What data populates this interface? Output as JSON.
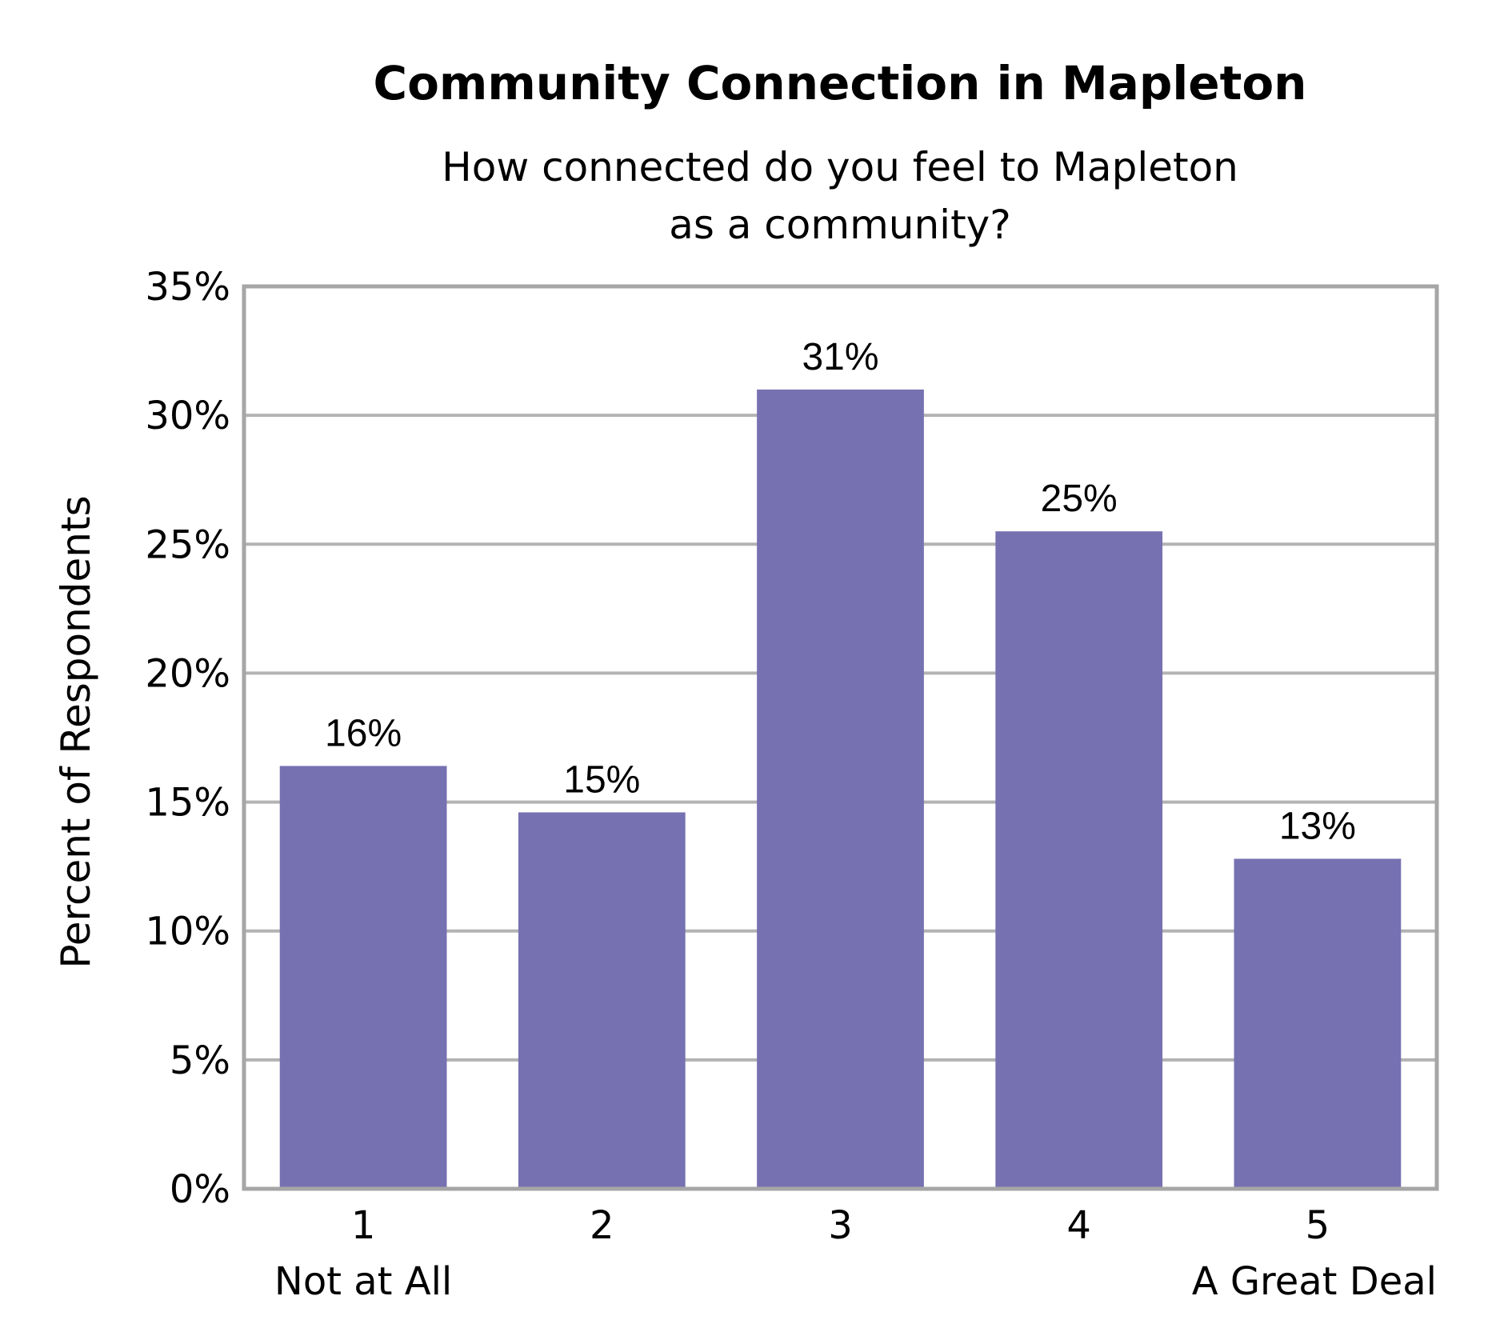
{
  "chart_data": {
    "type": "bar",
    "title": "Community Connection in Mapleton",
    "subtitle": [
      "How connected do you feel to Mapleton",
      "as a community?"
    ],
    "ylabel": "Percent of Respondents",
    "xlabel": "",
    "categories": [
      "1",
      "2",
      "3",
      "4",
      "5"
    ],
    "category_sublabels": [
      "Not at All",
      "",
      "",
      "",
      "A Great Deal"
    ],
    "values": [
      16.4,
      14.6,
      31.0,
      25.5,
      12.8
    ],
    "data_labels": [
      "16%",
      "15%",
      "31%",
      "25%",
      "13%"
    ],
    "ylim": [
      0,
      35
    ],
    "yticks": [
      0,
      5,
      10,
      15,
      20,
      25,
      30,
      35
    ],
    "ytick_labels": [
      "0%",
      "5%",
      "10%",
      "15%",
      "20%",
      "25%",
      "30%",
      "35%"
    ],
    "grid": true,
    "legend": "none",
    "colors": {
      "bar": "#7671b1",
      "grid": "#b3b3b3",
      "frame": "#a6a6a6"
    }
  }
}
